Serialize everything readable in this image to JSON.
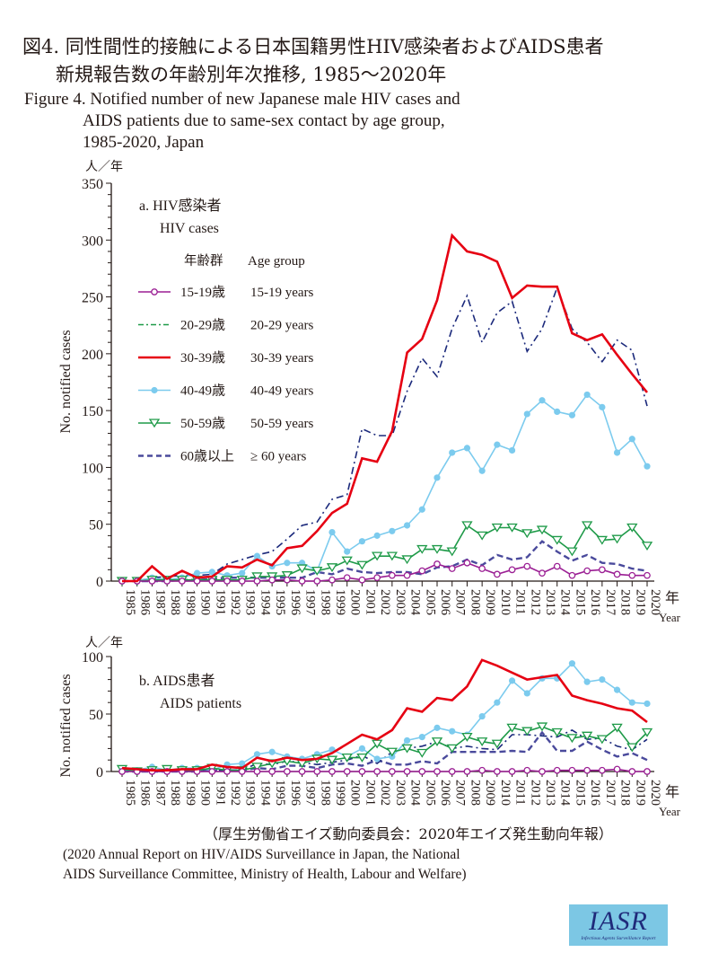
{
  "title": {
    "jp_line1": "図4. 同性間性的接触による日本国籍男性HIV感染者およびAIDS患者",
    "jp_line2": "新規報告数の年齢別年次推移, 1985〜2020年",
    "en_line1": "Figure 4. Notified number of new Japanese male HIV cases and",
    "en_line2": "AIDS patients due to same-sex contact by age group,",
    "en_line3": "1985-2020, Japan"
  },
  "source": {
    "jp": "（厚生労働省エイズ動向委員会：2020年エイズ発生動向年報）",
    "en_line1": "(2020 Annual Report on HIV/AIDS Surveillance in Japan, the National",
    "en_line2": "AIDS Surveillance Committee, Ministry of Health, Labour and Welfare)"
  },
  "logo": {
    "main": "IASR",
    "sub": "Infectious Agents Surveillance Report"
  },
  "legend": {
    "header_jp": "年齢群",
    "header_en": "Age group",
    "items": [
      {
        "jp": "15-19歳",
        "en": "15-19 years"
      },
      {
        "jp": "20-29歳",
        "en": "20-29 years"
      },
      {
        "jp": "30-39歳",
        "en": "30-39 years"
      },
      {
        "jp": "40-49歳",
        "en": "40-49 years"
      },
      {
        "jp": "50-59歳",
        "en": "50-59 years"
      },
      {
        "jp": "60歳以上",
        "en": "≥ 60 years"
      }
    ]
  },
  "colors": {
    "15-19": "#9b1f94",
    "20-29": "#1c2a7c",
    "20-29_legend": "#1e9a48",
    "30-39": "#e60012",
    "40-49": "#7ccbee",
    "50-59": "#1e9a48",
    "60+": "#4a4a9c"
  },
  "chart_data": [
    {
      "type": "line",
      "panel": "a",
      "title_jp": "a. HIV感染者",
      "title_en": "HIV cases",
      "unit_label": "人／年",
      "ylabel": "No. notified cases",
      "xlabel_jp": "年",
      "xlabel_en": "Year",
      "ylim": [
        0,
        350
      ],
      "yticks": [
        0,
        50,
        100,
        150,
        200,
        250,
        300,
        350
      ],
      "legend_position": "top-left",
      "x": [
        1985,
        1986,
        1987,
        1988,
        1989,
        1990,
        1991,
        1992,
        1993,
        1994,
        1995,
        1996,
        1997,
        1998,
        1999,
        2000,
        2001,
        2002,
        2003,
        2004,
        2005,
        2006,
        2007,
        2008,
        2009,
        2010,
        2011,
        2012,
        2013,
        2014,
        2015,
        2016,
        2017,
        2018,
        2019,
        2020
      ],
      "series": [
        {
          "name": "15-19",
          "values": [
            0,
            0,
            0,
            0,
            0,
            0,
            0,
            0,
            0,
            0,
            1,
            1,
            0,
            0,
            1,
            3,
            1,
            3,
            5,
            5,
            9,
            15,
            11,
            16,
            11,
            6,
            10,
            13,
            7,
            13,
            5,
            9,
            10,
            6,
            5,
            5
          ]
        },
        {
          "name": "20-29",
          "values": [
            0,
            0,
            3,
            4,
            5,
            5,
            6,
            15,
            19,
            23,
            26,
            37,
            49,
            52,
            72,
            76,
            134,
            128,
            128,
            167,
            196,
            180,
            222,
            251,
            210,
            236,
            246,
            202,
            222,
            258,
            222,
            210,
            193,
            212,
            203,
            154
          ]
        },
        {
          "name": "30-39",
          "values": [
            0,
            0,
            13,
            2,
            9,
            3,
            4,
            13,
            12,
            19,
            14,
            29,
            31,
            44,
            60,
            68,
            108,
            105,
            132,
            201,
            213,
            247,
            304,
            290,
            287,
            281,
            249,
            260,
            259,
            259,
            218,
            212,
            217,
            199,
            182,
            166
          ]
        },
        {
          "name": "40-49",
          "values": [
            0,
            0,
            3,
            1,
            3,
            7,
            8,
            5,
            7,
            22,
            13,
            16,
            16,
            9,
            43,
            26,
            35,
            40,
            44,
            49,
            63,
            91,
            113,
            117,
            97,
            120,
            115,
            147,
            159,
            149,
            146,
            164,
            153,
            113,
            125,
            101
          ]
        },
        {
          "name": "50-59",
          "values": [
            0,
            0,
            1,
            1,
            1,
            1,
            1,
            1,
            1,
            4,
            4,
            5,
            11,
            9,
            12,
            18,
            14,
            22,
            22,
            19,
            28,
            28,
            26,
            49,
            40,
            47,
            47,
            42,
            45,
            36,
            26,
            49,
            36,
            37,
            47,
            31
          ]
        },
        {
          "name": "60+",
          "values": [
            0,
            0,
            0,
            0,
            1,
            1,
            2,
            3,
            3,
            3,
            3,
            3,
            3,
            8,
            6,
            11,
            8,
            7,
            8,
            8,
            6,
            12,
            13,
            19,
            14,
            23,
            19,
            21,
            35,
            26,
            18,
            23,
            16,
            15,
            11,
            9
          ]
        }
      ]
    },
    {
      "type": "line",
      "panel": "b",
      "title_jp": "b. AIDS患者",
      "title_en": "AIDS patients",
      "unit_label": "人／年",
      "ylabel": "No. notified cases",
      "xlabel_jp": "年",
      "xlabel_en": "Year",
      "ylim": [
        0,
        100
      ],
      "yticks": [
        0,
        50,
        100
      ],
      "x": [
        1985,
        1986,
        1987,
        1988,
        1989,
        1990,
        1991,
        1992,
        1993,
        1994,
        1995,
        1996,
        1997,
        1998,
        1999,
        2000,
        2001,
        2002,
        2003,
        2004,
        2005,
        2006,
        2007,
        2008,
        2009,
        2010,
        2011,
        2012,
        2013,
        2014,
        2015,
        2016,
        2017,
        2018,
        2019,
        2020
      ],
      "series": [
        {
          "name": "15-19",
          "values": [
            0,
            0,
            0,
            0,
            0,
            0,
            0,
            0,
            0,
            0,
            0,
            0,
            0,
            0,
            0,
            0,
            0,
            0,
            0,
            0,
            0,
            0,
            0,
            0,
            1,
            0,
            0,
            1,
            0,
            1,
            1,
            1,
            1,
            2,
            0,
            0
          ]
        },
        {
          "name": "20-29",
          "values": [
            0,
            0,
            0,
            0,
            0,
            0,
            1,
            1,
            1,
            7,
            6,
            9,
            8,
            6,
            8,
            10,
            14,
            7,
            17,
            20,
            22,
            26,
            20,
            22,
            20,
            19,
            32,
            32,
            31,
            30,
            36,
            28,
            29,
            22,
            19,
            28
          ]
        },
        {
          "name": "30-39",
          "values": [
            3,
            2,
            1,
            1,
            2,
            2,
            6,
            4,
            3,
            12,
            9,
            12,
            10,
            11,
            16,
            24,
            32,
            28,
            36,
            55,
            52,
            64,
            62,
            74,
            97,
            92,
            86,
            80,
            82,
            84,
            66,
            62,
            59,
            55,
            53,
            43
          ]
        },
        {
          "name": "40-49",
          "values": [
            1,
            1,
            4,
            1,
            3,
            3,
            1,
            6,
            7,
            15,
            17,
            13,
            11,
            15,
            19,
            13,
            20,
            11,
            13,
            27,
            30,
            38,
            35,
            32,
            48,
            60,
            79,
            68,
            81,
            81,
            94,
            78,
            80,
            71,
            60,
            59
          ]
        },
        {
          "name": "50-59",
          "values": [
            2,
            0,
            1,
            2,
            1,
            1,
            3,
            1,
            1,
            4,
            7,
            9,
            7,
            11,
            10,
            12,
            12,
            24,
            17,
            20,
            16,
            26,
            20,
            30,
            26,
            24,
            38,
            35,
            39,
            34,
            29,
            31,
            28,
            38,
            21,
            34
          ]
        },
        {
          "name": "60+",
          "values": [
            0,
            0,
            0,
            0,
            0,
            0,
            1,
            1,
            1,
            3,
            2,
            5,
            5,
            3,
            6,
            7,
            5,
            10,
            6,
            6,
            9,
            7,
            17,
            17,
            17,
            17,
            18,
            17,
            34,
            18,
            18,
            26,
            19,
            13,
            16,
            10
          ]
        }
      ]
    }
  ]
}
